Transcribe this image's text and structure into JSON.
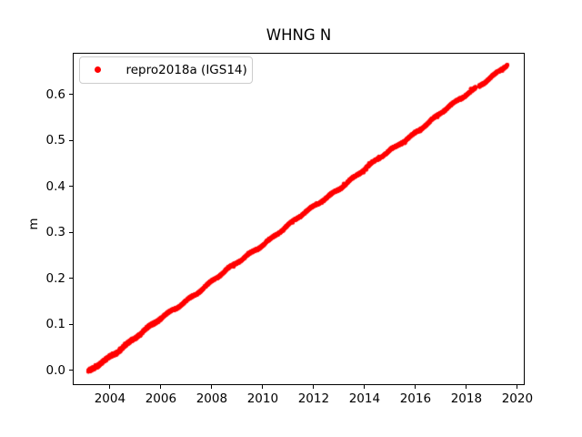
{
  "figure": {
    "background": "#ffffff",
    "text_color": "#000000",
    "spine_color": "#000000",
    "legend_border_color": "#cccccc"
  },
  "chart_data": {
    "type": "scatter",
    "title": "WHNG N",
    "xlabel": "",
    "ylabel": "m",
    "xlim": [
      2002.54,
      2020.29
    ],
    "ylim": [
      -0.031,
      0.691
    ],
    "xticks": [
      2004,
      2006,
      2008,
      2010,
      2012,
      2014,
      2016,
      2018,
      2020
    ],
    "yticks": [
      0.0,
      0.1,
      0.2,
      0.3,
      0.4,
      0.5,
      0.6
    ],
    "grid": false,
    "legend_position": "upper left",
    "series": [
      {
        "name": "repro2018a (IGS14)",
        "color": "#ff0000",
        "marker": "dot",
        "marker_size_px": 4.2,
        "x_start": 2003.15,
        "x_end": 2019.61,
        "y_start_m": -0.004,
        "y_end_m": 0.664,
        "trend_m_per_year": 0.0406,
        "cadence_days": 1,
        "gaps_x": [
          [
            2018.36,
            2018.5
          ]
        ],
        "sample_points": [
          [
            2003.15,
            -0.004
          ],
          [
            2004,
            0.031
          ],
          [
            2005,
            0.071
          ],
          [
            2006,
            0.112
          ],
          [
            2007,
            0.152
          ],
          [
            2008,
            0.193
          ],
          [
            2009,
            0.234
          ],
          [
            2010,
            0.274
          ],
          [
            2011,
            0.315
          ],
          [
            2012,
            0.355
          ],
          [
            2013,
            0.396
          ],
          [
            2014,
            0.437
          ],
          [
            2015,
            0.477
          ],
          [
            2016,
            0.518
          ],
          [
            2017,
            0.558
          ],
          [
            2018,
            0.599
          ],
          [
            2019,
            0.64
          ],
          [
            2019.61,
            0.664
          ]
        ]
      }
    ]
  }
}
